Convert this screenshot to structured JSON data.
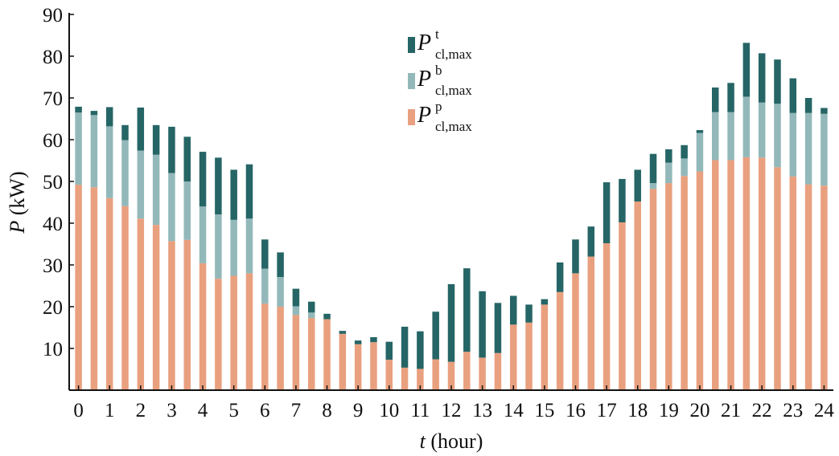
{
  "chart_data": {
    "type": "bar",
    "stacked": true,
    "xlabel_var": "t",
    "xlabel_unit": "(hour)",
    "ylabel_var": "P",
    "ylabel_unit": "(kW)",
    "x_ticks": [
      "0",
      "1",
      "2",
      "3",
      "4",
      "5",
      "6",
      "7",
      "8",
      "9",
      "10",
      "11",
      "12",
      "13",
      "14",
      "15",
      "16",
      "17",
      "18",
      "19",
      "20",
      "21",
      "22",
      "23",
      "24"
    ],
    "y_ticks": [
      "10",
      "20",
      "30",
      "40",
      "50",
      "60",
      "70",
      "80",
      "90"
    ],
    "ylim": [
      0,
      90
    ],
    "xlim": [
      -0.3,
      24.3
    ],
    "x": [
      0,
      0.5,
      1,
      1.5,
      2,
      2.5,
      3,
      3.5,
      4,
      4.5,
      5,
      5.5,
      6,
      6.5,
      7,
      7.5,
      8,
      8.5,
      9,
      9.5,
      10,
      10.5,
      11,
      11.5,
      12,
      12.5,
      13,
      13.5,
      14,
      14.5,
      15,
      15.5,
      16,
      16.5,
      17,
      17.5,
      18,
      18.5,
      19,
      19.5,
      20,
      20.5,
      21,
      21.5,
      22,
      22.5,
      23,
      23.5,
      24
    ],
    "series": [
      {
        "name_main": "P",
        "name_sub": "cl,max",
        "name_sup": "p",
        "color": "#E9A07F",
        "values": [
          49.2,
          48.6,
          46.0,
          44.1,
          41.1,
          39.6,
          35.7,
          36.0,
          30.4,
          26.7,
          27.4,
          28.0,
          20.7,
          20.0,
          18.0,
          17.3,
          17.0,
          13.5,
          11.0,
          11.5,
          7.3,
          5.4,
          5.1,
          7.4,
          6.8,
          9.2,
          7.8,
          8.9,
          15.7,
          16.2,
          20.5,
          23.5,
          28.0,
          32.0,
          35.2,
          40.2,
          45.2,
          48.2,
          49.6,
          51.3,
          52.4,
          55.1,
          55.1,
          55.8,
          55.7,
          53.4,
          51.2,
          49.3,
          49.0
        ]
      },
      {
        "name_main": "P",
        "name_sub": "cl,max",
        "name_sup": "b",
        "color": "#93B8BA",
        "values": [
          17.3,
          17.3,
          17.2,
          15.8,
          16.3,
          16.8,
          16.3,
          14.0,
          13.6,
          15.4,
          13.4,
          13.1,
          8.4,
          7.1,
          2.1,
          1.3,
          0.0,
          0.0,
          0.0,
          0.0,
          0.0,
          0.0,
          0.0,
          0.0,
          0.0,
          0.0,
          0.0,
          0.0,
          0.0,
          0.0,
          0.0,
          0.0,
          0.0,
          0.0,
          0.0,
          0.0,
          0.0,
          1.4,
          4.9,
          4.2,
          9.2,
          11.5,
          11.5,
          14.5,
          13.2,
          15.2,
          15.2,
          17.1,
          17.2
        ]
      },
      {
        "name_main": "P",
        "name_sub": "cl,max",
        "name_sup": "t",
        "color": "#266566",
        "values": [
          1.4,
          1.0,
          4.6,
          3.6,
          10.3,
          7.1,
          11.1,
          10.7,
          13.1,
          13.6,
          12.0,
          13.0,
          7.0,
          5.9,
          4.2,
          2.6,
          1.3,
          0.7,
          0.9,
          1.2,
          4.3,
          9.8,
          9.0,
          11.4,
          18.6,
          20.0,
          15.9,
          12.0,
          6.9,
          4.3,
          1.3,
          7.1,
          8.1,
          7.2,
          14.6,
          10.4,
          7.6,
          7.0,
          3.2,
          3.2,
          0.7,
          5.9,
          7.0,
          12.9,
          11.8,
          10.6,
          8.3,
          3.6,
          1.4
        ]
      }
    ],
    "legend_position": "top-center",
    "grid": false
  }
}
